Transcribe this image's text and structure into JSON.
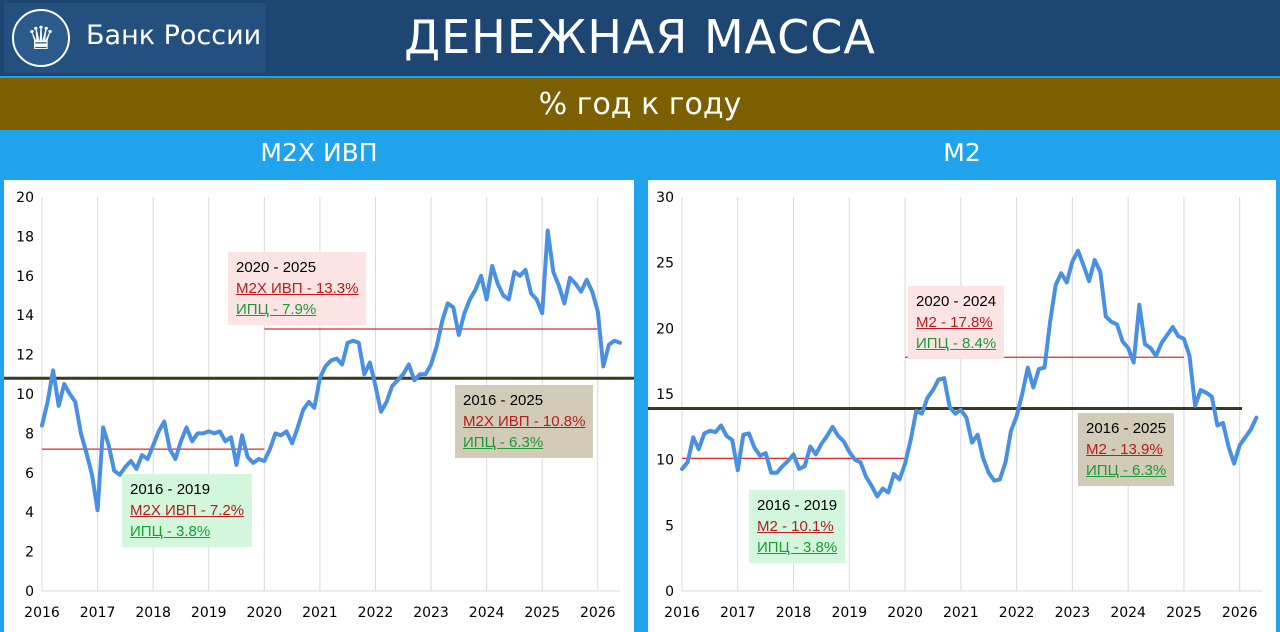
{
  "header": {
    "logo_text": "Банк России",
    "title": "ДЕНЕЖНАЯ МАССА",
    "subtitle": "% год к году"
  },
  "colors": {
    "header_bg": "#1d4673",
    "subtitle_bg": "#7c5f00",
    "frame": "#1fa3ec",
    "series": "#4a90e2",
    "avg_short": "#dc2b2b",
    "avg_long": "#3a3a1e"
  },
  "icons": {
    "logo": "double-headed-eagle-icon"
  },
  "panels": {
    "left": {
      "title": "М2Х ИВП",
      "ann_2020": {
        "period": "2020 - 2025",
        "line1": "М2Х ИВП - 13.3%",
        "line2": "ИПЦ - 7.9%"
      },
      "ann_2016_2025": {
        "period": "2016 - 2025",
        "line1": "М2Х ИВП - 10.8%",
        "line2": "ИПЦ - 6.3%"
      },
      "ann_2016_2019": {
        "period": "2016 - 2019",
        "line1": "М2Х ИВП - 7.2%",
        "line2": "ИПЦ - 3.8%"
      }
    },
    "right": {
      "title": "М2",
      "ann_2020": {
        "period": "2020 - 2024",
        "line1": "М2 - 17.8%",
        "line2": "ИПЦ - 8.4%"
      },
      "ann_2016_2025": {
        "period": "2016 - 2025",
        "line1": "М2 - 13.9%",
        "line2": "ИПЦ - 6.3%"
      },
      "ann_2016_2019": {
        "period": "2016 - 2019",
        "line1": "М2 - 10.1%",
        "line2": "ИПЦ - 3.8%"
      }
    }
  },
  "chart_data": [
    {
      "type": "line",
      "title": "М2Х ИВП",
      "xlim": [
        2016,
        2026.4
      ],
      "ylim": [
        0,
        20
      ],
      "x_ticks": [
        "2016",
        "2017",
        "2018",
        "2019",
        "2020",
        "2021",
        "2022",
        "2023",
        "2024",
        "2025",
        "2026"
      ],
      "y_ticks": [
        0,
        2,
        4,
        6,
        8,
        10,
        12,
        14,
        16,
        18,
        20
      ],
      "grid": "vertical",
      "series": [
        {
          "points": [
            [
              2016.0,
              8.4
            ],
            [
              2016.1,
              9.6
            ],
            [
              2016.2,
              11.2
            ],
            [
              2016.3,
              9.4
            ],
            [
              2016.4,
              10.5
            ],
            [
              2016.5,
              10.0
            ],
            [
              2016.6,
              9.6
            ],
            [
              2016.7,
              8.0
            ],
            [
              2016.8,
              7.0
            ],
            [
              2016.9,
              5.9
            ],
            [
              2017.0,
              4.1
            ],
            [
              2017.1,
              8.3
            ],
            [
              2017.2,
              7.4
            ],
            [
              2017.3,
              6.1
            ],
            [
              2017.4,
              5.9
            ],
            [
              2017.5,
              6.3
            ],
            [
              2017.6,
              6.6
            ],
            [
              2017.7,
              6.2
            ],
            [
              2017.8,
              6.9
            ],
            [
              2017.9,
              6.7
            ],
            [
              2018.0,
              7.4
            ],
            [
              2018.1,
              8.1
            ],
            [
              2018.2,
              8.6
            ],
            [
              2018.3,
              7.2
            ],
            [
              2018.4,
              6.7
            ],
            [
              2018.5,
              7.6
            ],
            [
              2018.6,
              8.3
            ],
            [
              2018.7,
              7.6
            ],
            [
              2018.8,
              8.0
            ],
            [
              2018.9,
              8.0
            ],
            [
              2019.0,
              8.1
            ],
            [
              2019.1,
              8.0
            ],
            [
              2019.2,
              8.1
            ],
            [
              2019.3,
              7.6
            ],
            [
              2019.4,
              7.8
            ],
            [
              2019.5,
              6.4
            ],
            [
              2019.6,
              7.9
            ],
            [
              2019.7,
              6.8
            ],
            [
              2019.8,
              6.5
            ],
            [
              2019.9,
              6.7
            ],
            [
              2020.0,
              6.6
            ],
            [
              2020.1,
              7.2
            ],
            [
              2020.2,
              8.0
            ],
            [
              2020.3,
              7.9
            ],
            [
              2020.4,
              8.1
            ],
            [
              2020.5,
              7.5
            ],
            [
              2020.6,
              8.3
            ],
            [
              2020.7,
              9.2
            ],
            [
              2020.8,
              9.6
            ],
            [
              2020.9,
              9.3
            ],
            [
              2021.0,
              10.8
            ],
            [
              2021.1,
              11.4
            ],
            [
              2021.2,
              11.7
            ],
            [
              2021.3,
              11.8
            ],
            [
              2021.4,
              11.5
            ],
            [
              2021.5,
              12.6
            ],
            [
              2021.6,
              12.7
            ],
            [
              2021.7,
              12.6
            ],
            [
              2021.8,
              11.0
            ],
            [
              2021.9,
              11.6
            ],
            [
              2022.0,
              10.4
            ],
            [
              2022.1,
              9.1
            ],
            [
              2022.2,
              9.6
            ],
            [
              2022.3,
              10.4
            ],
            [
              2022.4,
              10.7
            ],
            [
              2022.5,
              11.0
            ],
            [
              2022.6,
              11.5
            ],
            [
              2022.7,
              10.7
            ],
            [
              2022.8,
              11.0
            ],
            [
              2022.9,
              11.0
            ],
            [
              2023.0,
              11.5
            ],
            [
              2023.1,
              12.4
            ],
            [
              2023.2,
              13.7
            ],
            [
              2023.3,
              14.6
            ],
            [
              2023.4,
              14.4
            ],
            [
              2023.5,
              13.0
            ],
            [
              2023.6,
              14.1
            ],
            [
              2023.7,
              14.8
            ],
            [
              2023.8,
              15.3
            ],
            [
              2023.9,
              16.0
            ],
            [
              2024.0,
              14.8
            ],
            [
              2024.1,
              16.5
            ],
            [
              2024.2,
              15.6
            ],
            [
              2024.3,
              15.0
            ],
            [
              2024.4,
              14.8
            ],
            [
              2024.5,
              16.2
            ],
            [
              2024.6,
              16.0
            ],
            [
              2024.7,
              16.3
            ],
            [
              2024.8,
              15.1
            ],
            [
              2024.9,
              14.8
            ],
            [
              2025.0,
              14.1
            ],
            [
              2025.1,
              18.3
            ],
            [
              2025.2,
              16.2
            ],
            [
              2025.3,
              15.5
            ],
            [
              2025.4,
              14.6
            ],
            [
              2025.5,
              15.9
            ],
            [
              2025.6,
              15.6
            ],
            [
              2025.7,
              15.2
            ],
            [
              2025.8,
              15.8
            ],
            [
              2025.9,
              15.2
            ],
            [
              2026.0,
              14.2
            ],
            [
              2026.1,
              11.4
            ],
            [
              2026.2,
              12.5
            ],
            [
              2026.3,
              12.7
            ],
            [
              2026.4,
              12.6
            ]
          ]
        }
      ],
      "reference_lines": [
        {
          "label": "2016 - 2019",
          "y": 7.2,
          "x_from": 2016.0,
          "x_to": 2020.0,
          "style": "thin-red"
        },
        {
          "label": "2020 - 2025",
          "y": 13.3,
          "x_from": 2020.0,
          "x_to": 2026.0,
          "style": "thin-red"
        },
        {
          "label": "2016 - 2025",
          "y": 10.8,
          "x_from": 2016.0,
          "x_to": 2026.0,
          "style": "thick-dark"
        }
      ]
    },
    {
      "type": "line",
      "title": "М2",
      "xlim": [
        2016,
        2026.4
      ],
      "ylim": [
        0,
        30
      ],
      "x_ticks": [
        "2016",
        "2017",
        "2018",
        "2019",
        "2020",
        "2021",
        "2022",
        "2023",
        "2024",
        "2025",
        "2026"
      ],
      "y_ticks": [
        0,
        5,
        10,
        15,
        20,
        25,
        30
      ],
      "grid": "vertical",
      "series": [
        {
          "points": [
            [
              2016.0,
              9.3
            ],
            [
              2016.1,
              9.8
            ],
            [
              2016.2,
              11.7
            ],
            [
              2016.3,
              10.8
            ],
            [
              2016.4,
              12.0
            ],
            [
              2016.5,
              12.2
            ],
            [
              2016.6,
              12.1
            ],
            [
              2016.7,
              12.6
            ],
            [
              2016.8,
              11.8
            ],
            [
              2016.9,
              11.5
            ],
            [
              2017.0,
              9.2
            ],
            [
              2017.1,
              11.9
            ],
            [
              2017.2,
              12.0
            ],
            [
              2017.3,
              10.9
            ],
            [
              2017.4,
              10.3
            ],
            [
              2017.5,
              10.5
            ],
            [
              2017.6,
              9.0
            ],
            [
              2017.7,
              9.0
            ],
            [
              2017.8,
              9.5
            ],
            [
              2017.9,
              9.9
            ],
            [
              2018.0,
              10.4
            ],
            [
              2018.1,
              9.3
            ],
            [
              2018.2,
              9.5
            ],
            [
              2018.3,
              11.0
            ],
            [
              2018.4,
              10.4
            ],
            [
              2018.5,
              11.2
            ],
            [
              2018.6,
              11.8
            ],
            [
              2018.7,
              12.5
            ],
            [
              2018.8,
              11.8
            ],
            [
              2018.9,
              11.4
            ],
            [
              2019.0,
              10.6
            ],
            [
              2019.1,
              10.0
            ],
            [
              2019.2,
              9.8
            ],
            [
              2019.3,
              8.7
            ],
            [
              2019.4,
              8.0
            ],
            [
              2019.5,
              7.2
            ],
            [
              2019.6,
              7.8
            ],
            [
              2019.7,
              7.5
            ],
            [
              2019.8,
              8.9
            ],
            [
              2019.9,
              8.5
            ],
            [
              2020.0,
              9.7
            ],
            [
              2020.1,
              11.5
            ],
            [
              2020.2,
              13.7
            ],
            [
              2020.3,
              13.5
            ],
            [
              2020.4,
              14.7
            ],
            [
              2020.5,
              15.3
            ],
            [
              2020.6,
              16.1
            ],
            [
              2020.7,
              16.2
            ],
            [
              2020.8,
              14.0
            ],
            [
              2020.9,
              13.5
            ],
            [
              2021.0,
              13.8
            ],
            [
              2021.1,
              13.2
            ],
            [
              2021.2,
              11.3
            ],
            [
              2021.3,
              11.9
            ],
            [
              2021.4,
              10.1
            ],
            [
              2021.5,
              9.0
            ],
            [
              2021.6,
              8.4
            ],
            [
              2021.7,
              8.5
            ],
            [
              2021.8,
              9.8
            ],
            [
              2021.9,
              12.2
            ],
            [
              2022.0,
              13.3
            ],
            [
              2022.1,
              15.0
            ],
            [
              2022.2,
              17.0
            ],
            [
              2022.3,
              15.5
            ],
            [
              2022.4,
              16.9
            ],
            [
              2022.5,
              17.0
            ],
            [
              2022.6,
              20.5
            ],
            [
              2022.7,
              23.3
            ],
            [
              2022.8,
              24.2
            ],
            [
              2022.9,
              23.5
            ],
            [
              2023.0,
              25.1
            ],
            [
              2023.1,
              25.9
            ],
            [
              2023.2,
              24.8
            ],
            [
              2023.3,
              23.6
            ],
            [
              2023.4,
              25.2
            ],
            [
              2023.5,
              24.3
            ],
            [
              2023.6,
              20.9
            ],
            [
              2023.7,
              20.5
            ],
            [
              2023.8,
              20.3
            ],
            [
              2023.9,
              19.0
            ],
            [
              2024.0,
              18.5
            ],
            [
              2024.1,
              17.4
            ],
            [
              2024.2,
              21.8
            ],
            [
              2024.3,
              18.8
            ],
            [
              2024.4,
              18.5
            ],
            [
              2024.5,
              17.9
            ],
            [
              2024.6,
              18.9
            ],
            [
              2024.7,
              19.5
            ],
            [
              2024.8,
              20.1
            ],
            [
              2024.9,
              19.4
            ],
            [
              2025.0,
              19.2
            ],
            [
              2025.1,
              17.9
            ],
            [
              2025.2,
              14.1
            ],
            [
              2025.3,
              15.3
            ],
            [
              2025.4,
              15.1
            ],
            [
              2025.5,
              14.8
            ],
            [
              2025.6,
              12.6
            ],
            [
              2025.7,
              12.8
            ],
            [
              2025.8,
              11.0
            ],
            [
              2025.9,
              9.7
            ],
            [
              2026.0,
              11.1
            ],
            [
              2026.1,
              11.7
            ],
            [
              2026.2,
              12.3
            ],
            [
              2026.3,
              13.2
            ]
          ]
        }
      ],
      "reference_lines": [
        {
          "label": "2016 - 2019",
          "y": 10.1,
          "x_from": 2016.0,
          "x_to": 2020.0,
          "style": "thin-red"
        },
        {
          "label": "2020 - 2024",
          "y": 17.8,
          "x_from": 2020.0,
          "x_to": 2025.0,
          "style": "thin-red"
        },
        {
          "label": "2016 - 2025",
          "y": 13.9,
          "x_from": 2016.0,
          "x_to": 2026.4,
          "style": "thick-dark"
        }
      ]
    }
  ]
}
